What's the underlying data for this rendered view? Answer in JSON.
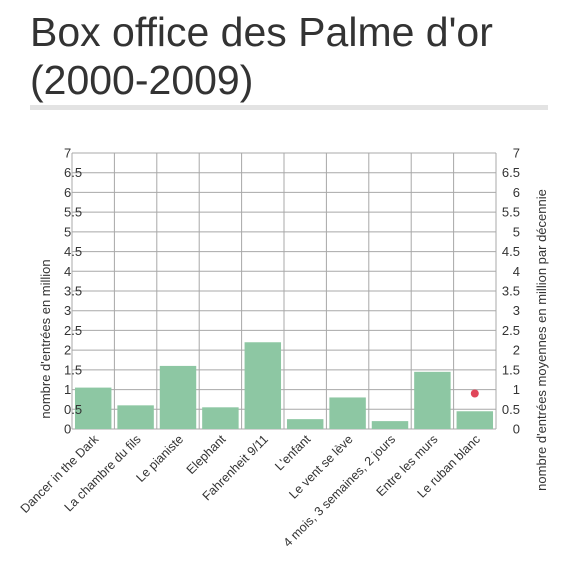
{
  "title": "Box office des Palme d'or (2000-2009)",
  "chart_data": {
    "type": "bar",
    "title": "Box office des Palme d'or (2000-2009)",
    "categories": [
      "Dancer in the Dark",
      "La chambre du fils",
      "Le pianiste",
      "Elephant",
      "Fahrenheit 9/11",
      "L'enfant",
      "Le vent se lève",
      "4 mois, 3 semaines, 2 jours",
      "Entre les murs",
      "Le ruban blanc"
    ],
    "series": [
      {
        "values": [
          1.05,
          0.6,
          1.6,
          0.55,
          2.2,
          0.25,
          0.8,
          0.2,
          1.45,
          0.45
        ],
        "color": "#8dc7a3"
      }
    ],
    "average_point": {
      "category": "Le ruban blanc",
      "value": 0.9,
      "color": "#e0465a"
    },
    "ylabel": "nombre d'entrées en million",
    "y2label": "nombre d'entrées moyennes en million par décennie",
    "ylim": [
      0,
      7
    ],
    "y2lim": [
      0,
      7
    ],
    "yticks": [
      "0",
      "0.5",
      "1",
      "1.5",
      "2",
      "2.5",
      "3",
      "3.5",
      "4",
      "4.5",
      "5",
      "5.5",
      "6",
      "6.5",
      "7"
    ],
    "grid": true,
    "legend": "none"
  }
}
